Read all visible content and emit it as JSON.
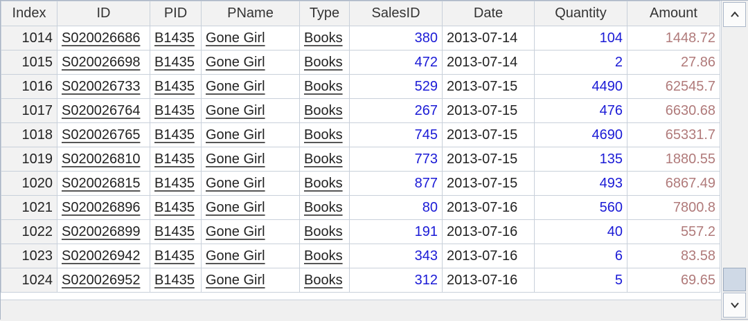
{
  "columns": [
    "Index",
    "ID",
    "PID",
    "PName",
    "Type",
    "SalesID",
    "Date",
    "Quantity",
    "Amount"
  ],
  "rows": [
    {
      "index": "1014",
      "id": "S020026686",
      "pid": "B1435",
      "pname": "Gone Girl",
      "type": "Books",
      "salesid": "380",
      "date": "2013-07-14",
      "quantity": "104",
      "amount": "1448.72"
    },
    {
      "index": "1015",
      "id": "S020026698",
      "pid": "B1435",
      "pname": "Gone Girl",
      "type": "Books",
      "salesid": "472",
      "date": "2013-07-14",
      "quantity": "2",
      "amount": "27.86"
    },
    {
      "index": "1016",
      "id": "S020026733",
      "pid": "B1435",
      "pname": "Gone Girl",
      "type": "Books",
      "salesid": "529",
      "date": "2013-07-15",
      "quantity": "4490",
      "amount": "62545.7"
    },
    {
      "index": "1017",
      "id": "S020026764",
      "pid": "B1435",
      "pname": "Gone Girl",
      "type": "Books",
      "salesid": "267",
      "date": "2013-07-15",
      "quantity": "476",
      "amount": "6630.68"
    },
    {
      "index": "1018",
      "id": "S020026765",
      "pid": "B1435",
      "pname": "Gone Girl",
      "type": "Books",
      "salesid": "745",
      "date": "2013-07-15",
      "quantity": "4690",
      "amount": "65331.7"
    },
    {
      "index": "1019",
      "id": "S020026810",
      "pid": "B1435",
      "pname": "Gone Girl",
      "type": "Books",
      "salesid": "773",
      "date": "2013-07-15",
      "quantity": "135",
      "amount": "1880.55"
    },
    {
      "index": "1020",
      "id": "S020026815",
      "pid": "B1435",
      "pname": "Gone Girl",
      "type": "Books",
      "salesid": "877",
      "date": "2013-07-15",
      "quantity": "493",
      "amount": "6867.49"
    },
    {
      "index": "1021",
      "id": "S020026896",
      "pid": "B1435",
      "pname": "Gone Girl",
      "type": "Books",
      "salesid": "80",
      "date": "2013-07-16",
      "quantity": "560",
      "amount": "7800.8"
    },
    {
      "index": "1022",
      "id": "S020026899",
      "pid": "B1435",
      "pname": "Gone Girl",
      "type": "Books",
      "salesid": "191",
      "date": "2013-07-16",
      "quantity": "40",
      "amount": "557.2"
    },
    {
      "index": "1023",
      "id": "S020026942",
      "pid": "B1435",
      "pname": "Gone Girl",
      "type": "Books",
      "salesid": "343",
      "date": "2013-07-16",
      "quantity": "6",
      "amount": "83.58"
    },
    {
      "index": "1024",
      "id": "S020026952",
      "pid": "B1435",
      "pname": "Gone Girl",
      "type": "Books",
      "salesid": "312",
      "date": "2013-07-16",
      "quantity": "5",
      "amount": "69.65"
    }
  ],
  "colors": {
    "numeric_blue": "#1a1ad6",
    "amount_rose": "#b07a7a",
    "grid_line": "#c8d0da"
  },
  "scrollbar": {
    "up_icon": "chevron-up-icon",
    "down_icon": "chevron-down-icon",
    "position_fraction": 0.95
  }
}
